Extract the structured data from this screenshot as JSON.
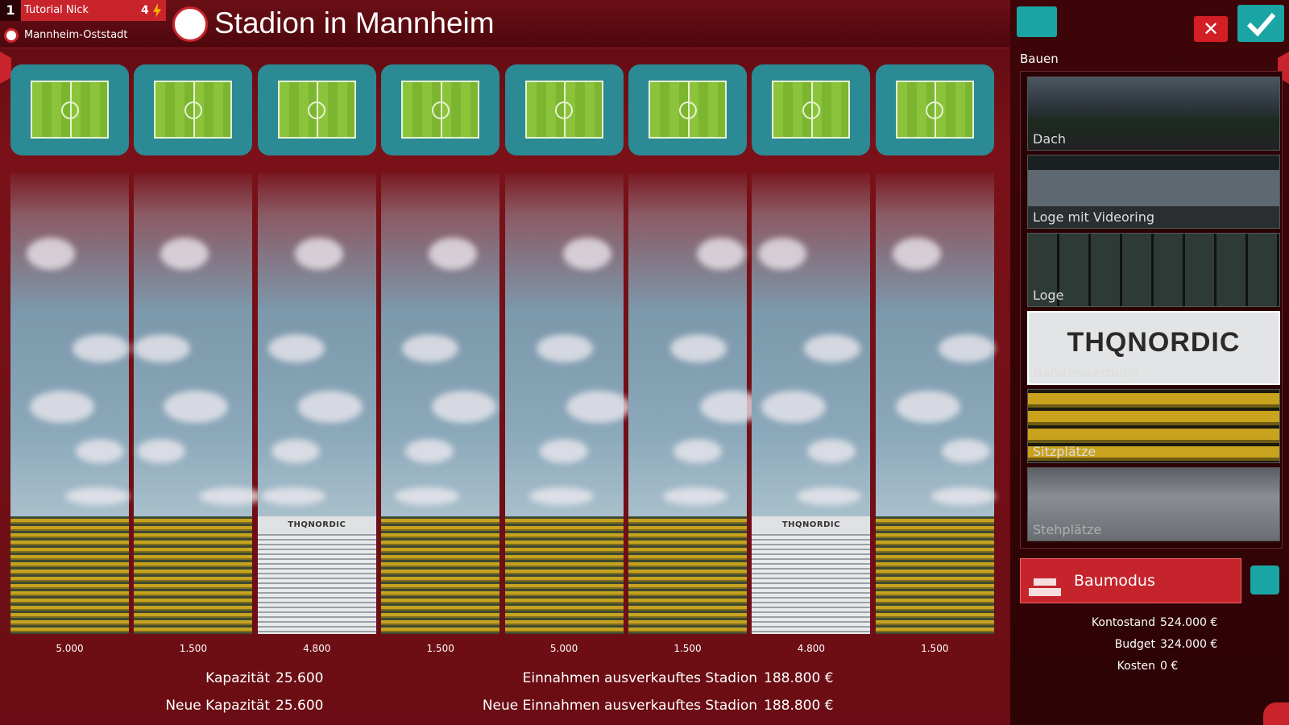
{
  "header": {
    "rank": "1",
    "manager": "Tutorial Nick",
    "points": "4",
    "club": "Mannheim-Oststadt",
    "title": "Stadion in Mannheim"
  },
  "stadium": {
    "sections": [
      {
        "capacity": "5.000"
      },
      {
        "capacity": "1.500"
      },
      {
        "capacity": "4.800",
        "sponsor": "THQNORDIC"
      },
      {
        "capacity": "1.500"
      },
      {
        "capacity": "5.000"
      },
      {
        "capacity": "1.500"
      },
      {
        "capacity": "4.800",
        "sponsor": "THQNORDIC"
      },
      {
        "capacity": "1.500"
      }
    ]
  },
  "summary": {
    "capacity_label": "Kapazität",
    "capacity": "25.600",
    "new_capacity_label": "Neue Kapazität",
    "new_capacity": "25.600",
    "revenue_label": "Einnahmen ausverkauftes Stadion",
    "revenue": "188.800 €",
    "new_revenue_label": "Neue Einnahmen ausverkauftes Stadion",
    "new_revenue": "188.800 €"
  },
  "build_panel": {
    "title": "Bauen",
    "options": [
      {
        "label": "Dach"
      },
      {
        "label": "Loge mit Videoring"
      },
      {
        "label": "Loge"
      },
      {
        "label": "Bandenwerbung",
        "sponsor": "THQNORDIC",
        "selected": true
      },
      {
        "label": "Sitzplätze"
      },
      {
        "label": "Stehplätze"
      }
    ],
    "mode_button": "Baumodus",
    "finances": [
      {
        "label": "Kontostand",
        "value": "524.000 €"
      },
      {
        "label": "Budget",
        "value": "324.000 €"
      },
      {
        "label": "Kosten",
        "value": "0 €"
      }
    ]
  }
}
